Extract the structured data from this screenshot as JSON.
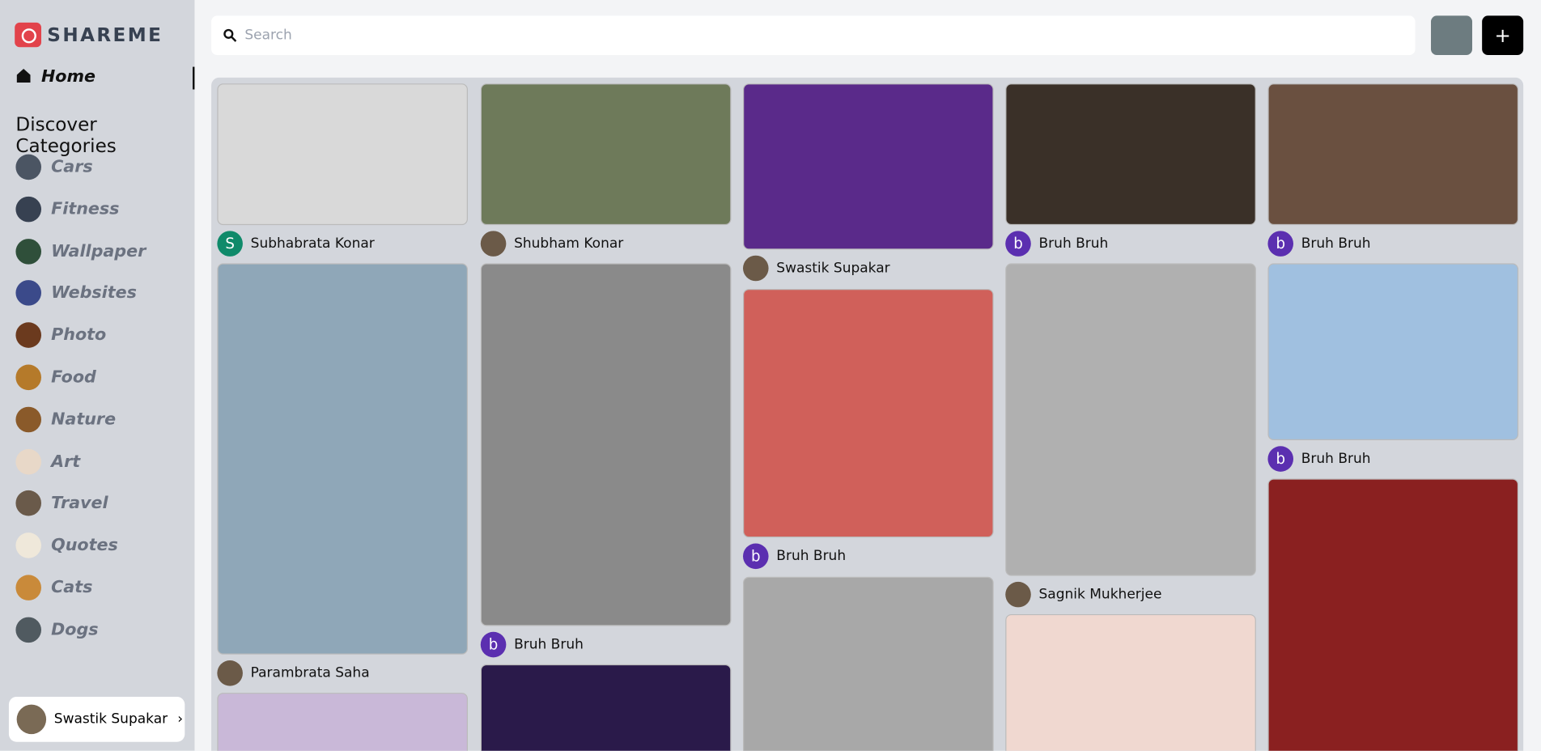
{
  "brand": "SHAREME",
  "search": {
    "placeholder": "Search"
  },
  "nav": {
    "home": "Home"
  },
  "categories": {
    "heading": "Discover Categories",
    "items": [
      "Cars",
      "Fitness",
      "Wallpaper",
      "Websites",
      "Photo",
      "Food",
      "Nature",
      "Art",
      "Travel",
      "Quotes",
      "Cats",
      "Dogs"
    ]
  },
  "user": {
    "name": "Swastik Supakar"
  },
  "feed": {
    "columns": [
      [
        {
          "author": "Subhabrata Konar",
          "initial": "S"
        },
        {
          "author": "Parambrata Saha"
        }
      ],
      [
        {
          "author": "Shubham Konar"
        },
        {
          "author": "Bruh Bruh",
          "initial": "b"
        }
      ],
      [
        {
          "author": "Swastik Supakar"
        },
        {
          "author": "Bruh Bruh",
          "initial": "b"
        }
      ],
      [
        {
          "author": "Bruh Bruh",
          "initial": "b"
        },
        {
          "author": "Sagnik Mukherjee"
        }
      ],
      [
        {
          "author": "Bruh Bruh",
          "initial": "b"
        },
        {
          "author": "Bruh Bruh",
          "initial": "b"
        }
      ]
    ]
  }
}
